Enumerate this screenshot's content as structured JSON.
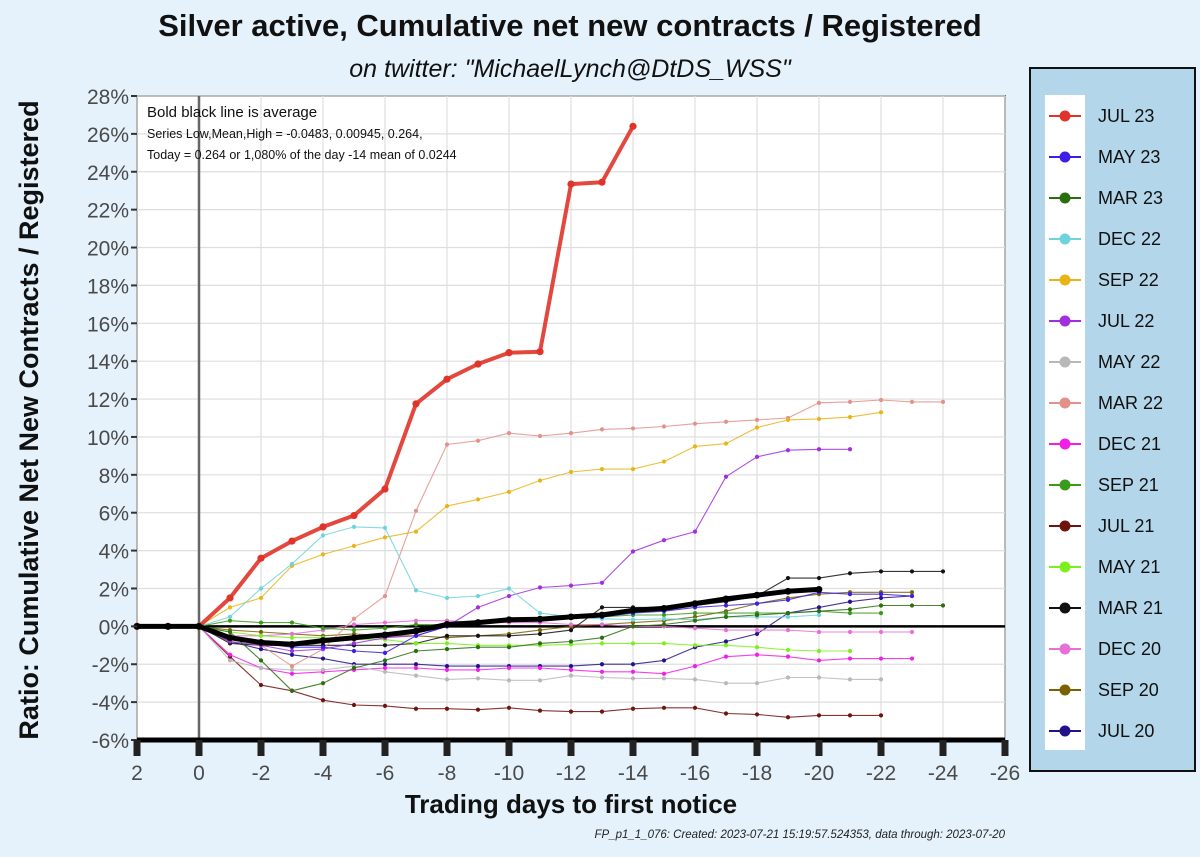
{
  "chart_data": {
    "type": "line",
    "title": "Silver active, Cumulative net new contracts / Registered",
    "subtitle": "on twitter:   \"MichaelLynch@DtDS_WSS\"",
    "xlabel": "Trading days to first notice",
    "ylabel": "Ratio: Cumulative Net New Contracts  / Registered",
    "xlim": [
      2,
      -26
    ],
    "ylim": [
      -6,
      28
    ],
    "x_ticks": [
      2,
      0,
      -2,
      -4,
      -6,
      -8,
      -10,
      -12,
      -14,
      -16,
      -18,
      -20,
      -22,
      -24,
      -26
    ],
    "x_tick_labels": [
      "2",
      "0",
      "-2",
      "-4",
      "-6",
      "-8",
      "-10",
      "-12",
      "-14",
      "-16",
      "-18",
      "-20",
      "-22",
      "-24",
      "-26"
    ],
    "y_ticks": [
      -6,
      -4,
      -2,
      0,
      2,
      4,
      6,
      8,
      10,
      12,
      14,
      16,
      18,
      20,
      22,
      24,
      26,
      28
    ],
    "y_tick_labels": [
      "-6%",
      "-4%",
      "-2%",
      "0%",
      "2%",
      "4%",
      "6%",
      "8%",
      "10%",
      "12%",
      "14%",
      "16%",
      "18%",
      "20%",
      "22%",
      "24%",
      "26%",
      "28%"
    ],
    "y_unit": "%",
    "grid": true,
    "legend_position": "right",
    "annotations": [
      "Bold black line is average",
      "Series Low,Mean,High = -0.0483, 0.00945, 0.264,",
      "Today = 0.264 or 1,080% of the day -14 mean of 0.0244"
    ],
    "footer": "FP_p1_1_076: Created: 2023-07-21 15:19:57.524353, data through: 2023-07-20",
    "series": [
      {
        "name": "JUL 23",
        "color": "#e0342a",
        "x": [
          2,
          1,
          0,
          -1,
          -2,
          -3,
          -4,
          -5,
          -6,
          -7,
          -8,
          -9,
          -10,
          -11,
          -12,
          -13,
          -14
        ],
        "values": [
          0,
          0,
          0,
          1.5,
          3.6,
          4.5,
          5.25,
          5.85,
          7.25,
          11.75,
          13.05,
          13.85,
          14.45,
          14.5,
          23.35,
          23.45,
          26.4
        ]
      },
      {
        "name": "MAY 23",
        "color": "#3c1ee6",
        "x": [
          0,
          -1,
          -2,
          -3,
          -4,
          -5,
          -6,
          -7,
          -8,
          -9,
          -10,
          -11,
          -12,
          -13,
          -14,
          -15,
          -16,
          -17,
          -18,
          -19,
          -20,
          -21,
          -22,
          -23
        ],
        "values": [
          0,
          -0.6,
          -0.9,
          -1.1,
          -1.1,
          -1.3,
          -1.4,
          -0.5,
          0.0,
          0.2,
          0.4,
          0.3,
          0.5,
          0.5,
          0.7,
          0.8,
          1.0,
          1.1,
          1.2,
          1.4,
          1.8,
          1.7,
          1.7,
          1.6
        ]
      },
      {
        "name": "MAR 23",
        "color": "#2b6e0e",
        "x": [
          0,
          -1,
          -2,
          -3,
          -4,
          -5,
          -6,
          -7,
          -8,
          -9,
          -10,
          -11,
          -12,
          -13,
          -14,
          -15,
          -16,
          -17,
          -18,
          -19,
          -20,
          -21,
          -22,
          -23,
          -24
        ],
        "values": [
          0,
          -0.3,
          -1.8,
          -3.4,
          -3.0,
          -2.2,
          -1.8,
          -1.3,
          -1.2,
          -1.1,
          -1.1,
          -0.9,
          -0.8,
          -0.6,
          0.0,
          0.1,
          0.3,
          0.5,
          0.6,
          0.7,
          0.8,
          0.9,
          1.1,
          1.1,
          1.1
        ]
      },
      {
        "name": "DEC 22",
        "color": "#6fd3dc",
        "x": [
          0,
          -1,
          -2,
          -3,
          -4,
          -5,
          -6,
          -7,
          -8,
          -9,
          -10,
          -11,
          -12,
          -13,
          -14,
          -15,
          -16,
          -17,
          -18,
          -19,
          -20
        ],
        "values": [
          0,
          0.5,
          2.0,
          3.3,
          4.8,
          5.25,
          5.2,
          1.9,
          1.5,
          1.6,
          2.0,
          0.7,
          0.5,
          0.4,
          0.35,
          0.4,
          0.35,
          0.5,
          0.5,
          0.5,
          0.6
        ]
      },
      {
        "name": "SEP 22",
        "color": "#e8b416",
        "x": [
          0,
          -1,
          -2,
          -3,
          -4,
          -5,
          -6,
          -7,
          -8,
          -9,
          -10,
          -11,
          -12,
          -13,
          -14,
          -15,
          -16,
          -17,
          -18,
          -19,
          -20,
          -21,
          -22
        ],
        "values": [
          0,
          1.0,
          1.5,
          3.2,
          3.8,
          4.25,
          4.7,
          5.0,
          6.35,
          6.7,
          7.1,
          7.7,
          8.15,
          8.3,
          8.3,
          8.7,
          9.5,
          9.65,
          10.5,
          10.9,
          10.95,
          11.05,
          11.3
        ]
      },
      {
        "name": "JUL 22",
        "color": "#a12ee0",
        "x": [
          0,
          -1,
          -2,
          -3,
          -4,
          -5,
          -6,
          -7,
          -8,
          -9,
          -10,
          -11,
          -12,
          -13,
          -14,
          -15,
          -16,
          -17,
          -18,
          -19,
          -20,
          -21
        ],
        "values": [
          0,
          -0.8,
          -1.0,
          -1.3,
          -1.2,
          -0.9,
          -0.6,
          -0.5,
          0.0,
          1.0,
          1.6,
          2.05,
          2.15,
          2.3,
          3.95,
          4.55,
          5.0,
          7.9,
          8.95,
          9.3,
          9.35,
          9.35
        ]
      },
      {
        "name": "MAY 22",
        "color": "#b8b8b8",
        "x": [
          0,
          -1,
          -2,
          -3,
          -4,
          -5,
          -6,
          -7,
          -8,
          -9,
          -10,
          -11,
          -12,
          -13,
          -14,
          -15,
          -16,
          -17,
          -18,
          -19,
          -20,
          -21,
          -22
        ],
        "values": [
          0,
          -1.8,
          -2.2,
          -2.3,
          -2.3,
          -2.1,
          -2.4,
          -2.6,
          -2.8,
          -2.75,
          -2.85,
          -2.85,
          -2.6,
          -2.7,
          -2.75,
          -2.75,
          -2.8,
          -3.0,
          -3.0,
          -2.7,
          -2.7,
          -2.8,
          -2.8
        ]
      },
      {
        "name": "MAR 22",
        "color": "#e3918a",
        "x": [
          0,
          -1,
          -2,
          -3,
          -4,
          -5,
          -6,
          -7,
          -8,
          -9,
          -10,
          -11,
          -12,
          -13,
          -14,
          -15,
          -16,
          -17,
          -18,
          -19,
          -20,
          -21,
          -22,
          -23,
          -24
        ],
        "values": [
          0,
          -0.5,
          -1.0,
          -2.1,
          -1.2,
          0.4,
          1.6,
          6.1,
          9.6,
          9.8,
          10.2,
          10.05,
          10.2,
          10.4,
          10.45,
          10.55,
          10.7,
          10.8,
          10.9,
          11.0,
          11.8,
          11.85,
          11.95,
          11.85,
          11.85
        ]
      },
      {
        "name": "DEC 21",
        "color": "#f01ee6",
        "x": [
          0,
          -1,
          -2,
          -3,
          -4,
          -5,
          -6,
          -7,
          -8,
          -9,
          -10,
          -11,
          -12,
          -13,
          -14,
          -15,
          -16,
          -17,
          -18,
          -19,
          -20,
          -21,
          -22,
          -23
        ],
        "values": [
          0,
          -1.5,
          -2.2,
          -2.5,
          -2.4,
          -2.3,
          -2.2,
          -2.2,
          -2.3,
          -2.3,
          -2.2,
          -2.2,
          -2.3,
          -2.4,
          -2.4,
          -2.5,
          -2.1,
          -1.6,
          -1.5,
          -1.6,
          -1.8,
          -1.7,
          -1.7,
          -1.7
        ]
      },
      {
        "name": "SEP 21",
        "color": "#3a9b1a",
        "x": [
          0,
          -1,
          -2,
          -3,
          -4,
          -5,
          -6,
          -7,
          -8,
          -9,
          -10,
          -11,
          -12,
          -13,
          -14,
          -15,
          -16,
          -17,
          -18,
          -19,
          -20,
          -21,
          -22
        ],
        "values": [
          0,
          0.3,
          0.2,
          0.2,
          -0.1,
          -0.2,
          -0.1,
          0.1,
          0.1,
          0.2,
          0.3,
          0.4,
          0.5,
          0.5,
          0.6,
          0.6,
          0.7,
          0.7,
          0.7,
          0.7,
          0.8,
          0.7,
          0.7
        ]
      },
      {
        "name": "JUL 21",
        "color": "#6e130e",
        "x": [
          0,
          -1,
          -2,
          -3,
          -4,
          -5,
          -6,
          -7,
          -8,
          -9,
          -10,
          -11,
          -12,
          -13,
          -14,
          -15,
          -16,
          -17,
          -18,
          -19,
          -20,
          -21,
          -22
        ],
        "values": [
          0,
          -1.6,
          -3.1,
          -3.4,
          -3.9,
          -4.15,
          -4.2,
          -4.35,
          -4.35,
          -4.4,
          -4.3,
          -4.45,
          -4.5,
          -4.5,
          -4.35,
          -4.3,
          -4.3,
          -4.6,
          -4.65,
          -4.8,
          -4.7,
          -4.7,
          -4.7
        ]
      },
      {
        "name": "MAY 21",
        "color": "#7cf01e",
        "x": [
          0,
          -1,
          -2,
          -3,
          -4,
          -5,
          -6,
          -7,
          -8,
          -9,
          -10,
          -11,
          -12,
          -13,
          -14,
          -15,
          -16,
          -17,
          -18,
          -19,
          -20,
          -21
        ],
        "values": [
          0,
          -0.3,
          -0.5,
          -0.6,
          -0.6,
          -0.7,
          -0.7,
          -0.9,
          -0.9,
          -1.0,
          -1.0,
          -1.0,
          -0.95,
          -0.9,
          -0.9,
          -0.9,
          -1.0,
          -1.0,
          -1.1,
          -1.25,
          -1.3,
          -1.3
        ]
      },
      {
        "name": "MAR 21",
        "color": "#111111",
        "x": [
          0,
          -1,
          -2,
          -3,
          -4,
          -5,
          -6,
          -7,
          -8,
          -9,
          -10,
          -11,
          -12,
          -13,
          -14,
          -15,
          -16,
          -17,
          -18,
          -19,
          -20,
          -21,
          -22,
          -23,
          -24
        ],
        "values": [
          0,
          -0.9,
          -1.0,
          -1.0,
          -1.0,
          -1.0,
          -1.0,
          -0.9,
          -0.5,
          -0.5,
          -0.5,
          -0.4,
          -0.2,
          1.0,
          1.0,
          1.0,
          1.1,
          1.3,
          1.6,
          2.55,
          2.55,
          2.8,
          2.9,
          2.9,
          2.9
        ]
      },
      {
        "name": "DEC 20",
        "color": "#e86fd6",
        "x": [
          0,
          -1,
          -2,
          -3,
          -4,
          -5,
          -6,
          -7,
          -8,
          -9,
          -10,
          -11,
          -12,
          -13,
          -14,
          -15,
          -16,
          -17,
          -18,
          -19,
          -20,
          -21,
          -22,
          -23
        ],
        "values": [
          0,
          -0.5,
          -0.5,
          -0.4,
          -0.2,
          0.1,
          0.2,
          0.3,
          0.3,
          0.2,
          0.2,
          0.2,
          0.1,
          0.1,
          0.0,
          0.0,
          -0.1,
          -0.2,
          -0.2,
          -0.2,
          -0.3,
          -0.3,
          -0.3,
          -0.3
        ]
      },
      {
        "name": "SEP 20",
        "color": "#7a6204",
        "x": [
          0,
          -1,
          -2,
          -3,
          -4,
          -5,
          -6,
          -7,
          -8,
          -9,
          -10,
          -11,
          -12,
          -13,
          -14,
          -15,
          -16,
          -17,
          -18,
          -19,
          -20,
          -21,
          -22,
          -23
        ],
        "values": [
          0,
          -0.2,
          -0.3,
          -0.4,
          -0.5,
          -0.4,
          -0.5,
          -0.5,
          -0.6,
          -0.5,
          -0.4,
          -0.2,
          0.0,
          0.1,
          0.2,
          0.3,
          0.5,
          0.8,
          1.2,
          1.5,
          1.7,
          1.8,
          1.8,
          1.8
        ]
      },
      {
        "name": "JUL 20",
        "color": "#24128a",
        "x": [
          0,
          -1,
          -2,
          -3,
          -4,
          -5,
          -6,
          -7,
          -8,
          -9,
          -10,
          -11,
          -12,
          -13,
          -14,
          -15,
          -16,
          -17,
          -18,
          -19,
          -20,
          -21,
          -22,
          -23
        ],
        "values": [
          0,
          -0.8,
          -1.2,
          -1.5,
          -1.7,
          -2.0,
          -2.0,
          -2.0,
          -2.1,
          -2.1,
          -2.1,
          -2.1,
          -2.1,
          -2.0,
          -2.0,
          -1.8,
          -1.1,
          -0.8,
          -0.4,
          0.7,
          1.0,
          1.3,
          1.5,
          1.6
        ]
      }
    ],
    "average_series": {
      "x": [
        2,
        1,
        0,
        -1,
        -2,
        -3,
        -4,
        -5,
        -6,
        -7,
        -8,
        -9,
        -10,
        -11,
        -12,
        -13,
        -14,
        -15,
        -16,
        -17,
        -18,
        -19,
        -20
      ],
      "values": [
        0,
        0,
        0,
        -0.6,
        -0.85,
        -0.95,
        -0.75,
        -0.6,
        -0.45,
        -0.25,
        0.1,
        0.2,
        0.35,
        0.38,
        0.5,
        0.6,
        0.85,
        0.95,
        1.2,
        1.45,
        1.65,
        1.85,
        1.95
      ],
      "color": "#000000"
    }
  }
}
